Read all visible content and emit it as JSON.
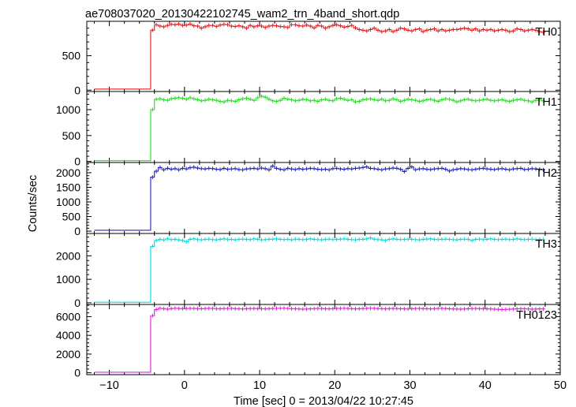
{
  "chart_data": {
    "type": "line",
    "title": "ae708037020_20130422102745_wam2_trn_4band_short.qdp",
    "xlabel": "Time [sec] 0 = 2013/04/22 10:27:45",
    "ylabel": "Counts/sec",
    "xlim": [
      -13,
      50
    ],
    "x_ticks": [
      -10,
      0,
      10,
      20,
      30,
      40,
      50
    ],
    "bin_width": 1,
    "pre_start": -12,
    "rise_time": -4.5,
    "grid": false,
    "panels": [
      {
        "name": "TH0",
        "color": "#e41a1c",
        "ylim": [
          -20,
          1000
        ],
        "y_ticks": [
          0,
          500
        ],
        "pre_level": 15,
        "values": [
          870,
          950,
          930,
          920,
          940,
          955,
          950,
          960,
          940,
          945,
          960,
          935,
          930,
          900,
          920,
          940,
          940,
          925,
          945,
          955,
          950,
          930,
          925,
          935,
          920,
          900,
          940,
          920,
          935,
          930,
          910,
          930,
          940,
          935,
          925,
          920,
          910,
          950,
          950,
          935,
          930,
          945,
          930,
          905,
          940,
          930,
          900,
          920,
          940,
          950,
          935,
          915,
          925,
          940,
          905,
          880,
          870,
          860,
          880,
          900,
          870,
          850,
          860,
          880,
          850,
          870,
          900,
          890,
          870,
          860,
          880,
          890,
          850,
          870,
          880,
          890,
          860,
          880,
          860,
          870,
          880,
          880,
          890,
          900,
          890,
          870,
          890,
          860,
          880,
          870,
          880,
          860,
          870,
          880,
          870,
          850,
          860,
          890,
          880,
          860,
          870,
          880,
          870,
          850,
          840
        ]
      },
      {
        "name": "TH1",
        "color": "#22dd22",
        "ylim": [
          -20,
          1350
        ],
        "y_ticks": [
          0,
          500,
          1000
        ],
        "pre_level": 15,
        "values": [
          1000,
          1200,
          1210,
          1190,
          1180,
          1210,
          1220,
          1230,
          1220,
          1200,
          1230,
          1210,
          1190,
          1170,
          1180,
          1200,
          1190,
          1180,
          1160,
          1150,
          1180,
          1170,
          1160,
          1190,
          1210,
          1220,
          1200,
          1180,
          1230,
          1260,
          1240,
          1200,
          1170,
          1160,
          1180,
          1220,
          1200,
          1190,
          1170,
          1180,
          1200,
          1190,
          1170,
          1180,
          1160,
          1190,
          1200,
          1180,
          1170,
          1210,
          1220,
          1200,
          1180,
          1190,
          1150,
          1160,
          1190,
          1200,
          1210,
          1190,
          1180,
          1200,
          1170,
          1180,
          1210,
          1190,
          1160,
          1180,
          1200,
          1190,
          1180,
          1160,
          1170,
          1190,
          1200,
          1180,
          1160,
          1190,
          1210,
          1200,
          1180,
          1150,
          1170,
          1190,
          1200,
          1180,
          1170,
          1180,
          1190,
          1200,
          1180,
          1170,
          1180,
          1190,
          1170,
          1160,
          1180,
          1190,
          1200,
          1180,
          1170,
          1150,
          1180,
          1190,
          1170
        ]
      },
      {
        "name": "TH2",
        "color": "#2222bb",
        "ylim": [
          -80,
          2350
        ],
        "y_ticks": [
          0,
          500,
          1000,
          1500,
          2000
        ],
        "pre_level": 30,
        "values": [
          1850,
          2050,
          2180,
          2100,
          2150,
          2120,
          2140,
          2100,
          2150,
          2130,
          2170,
          2190,
          2160,
          2140,
          2130,
          2150,
          2140,
          2120,
          2110,
          2150,
          2120,
          2130,
          2140,
          2110,
          2100,
          2130,
          2140,
          2150,
          2130,
          2160,
          2140,
          2100,
          2230,
          2150,
          2120,
          2100,
          2150,
          2130,
          2110,
          2140,
          2120,
          2130,
          2150,
          2140,
          2120,
          2110,
          2120,
          2100,
          2140,
          2150,
          2130,
          2120,
          2140,
          2130,
          2150,
          2160,
          2180,
          2200,
          2150,
          2140,
          2120,
          2100,
          2130,
          2140,
          2160,
          2150,
          2120,
          2040,
          2150,
          2200,
          2100,
          2130,
          2140,
          2120,
          2110,
          2130,
          2140,
          2150,
          2120,
          2060,
          2100,
          2120,
          2140,
          2130,
          2110,
          2100,
          2120,
          2140,
          2150,
          2130,
          2120,
          2110,
          2130,
          2140,
          2120,
          2100,
          2130,
          2140,
          2150,
          2110,
          2120,
          2140,
          2130,
          2120,
          2100
        ]
      },
      {
        "name": "TH3",
        "color": "#00dddd",
        "ylim": [
          -70,
          2950
        ],
        "y_ticks": [
          0,
          1000,
          2000
        ],
        "pre_level": 25,
        "values": [
          2400,
          2650,
          2700,
          2680,
          2720,
          2690,
          2700,
          2680,
          2650,
          2600,
          2700,
          2720,
          2690,
          2680,
          2700,
          2710,
          2690,
          2680,
          2700,
          2720,
          2690,
          2700,
          2680,
          2700,
          2710,
          2700,
          2690,
          2720,
          2700,
          2680,
          2690,
          2700,
          2710,
          2720,
          2700,
          2690,
          2700,
          2680,
          2710,
          2700,
          2690,
          2700,
          2720,
          2700,
          2690,
          2680,
          2700,
          2710,
          2690,
          2700,
          2710,
          2720,
          2700,
          2690,
          2680,
          2700,
          2700,
          2720,
          2760,
          2710,
          2690,
          2680,
          2650,
          2700,
          2720,
          2700,
          2690,
          2700,
          2710,
          2700,
          2690,
          2680,
          2700,
          2710,
          2720,
          2700,
          2690,
          2700,
          2710,
          2700,
          2690,
          2680,
          2700,
          2710,
          2700,
          2650,
          2700,
          2710,
          2690,
          2700,
          2720,
          2700,
          2690,
          2700,
          2710,
          2690,
          2700,
          2720,
          2700,
          2690,
          2700,
          2710,
          2690,
          2700,
          2690
        ]
      },
      {
        "name": "TH0123",
        "color": "#dd22dd",
        "ylim": [
          -200,
          7300
        ],
        "y_ticks": [
          0,
          2000,
          4000,
          6000
        ],
        "pre_level": 60,
        "values": [
          6100,
          6750,
          6900,
          6850,
          6800,
          6850,
          6900,
          6870,
          6850,
          6860,
          6880,
          6870,
          6850,
          6840,
          6860,
          6880,
          6870,
          6850,
          6840,
          6860,
          6870,
          6880,
          6850,
          6830,
          6820,
          6840,
          6860,
          6870,
          6850,
          6840,
          6830,
          6850,
          6870,
          6880,
          6890,
          6900,
          6870,
          6850,
          6840,
          6820,
          6800,
          6810,
          6830,
          6850,
          6870,
          6860,
          6840,
          6830,
          6850,
          6870,
          6880,
          6890,
          6870,
          6850,
          6830,
          6840,
          6860,
          6880,
          6900,
          6880,
          6860,
          6850,
          6830,
          6850,
          6870,
          6860,
          6840,
          6830,
          6820,
          6840,
          6860,
          6870,
          6850,
          6840,
          6830,
          6850,
          6870,
          6880,
          6860,
          6840,
          6820,
          6810,
          6800,
          6820,
          6840,
          6860,
          6870,
          6850,
          6840,
          6830,
          6820,
          6800,
          6780,
          6760,
          6770,
          6790,
          6810,
          6830,
          6850,
          6840,
          6820,
          6800,
          6810,
          6830,
          6820
        ]
      }
    ]
  }
}
